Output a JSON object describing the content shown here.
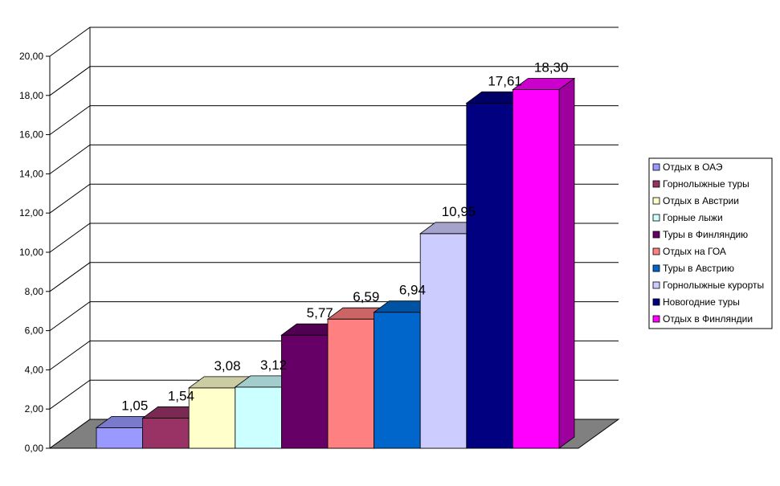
{
  "chart_data": {
    "type": "bar",
    "title": "",
    "xlabel": "",
    "ylabel": "",
    "ylim": [
      0,
      20
    ],
    "y_ticks": [
      "0,00",
      "2,00",
      "4,00",
      "6,00",
      "8,00",
      "10,00",
      "12,00",
      "14,00",
      "16,00",
      "18,00",
      "20,00"
    ],
    "grid": true,
    "three_d": true,
    "legend_position": "right",
    "categories": [
      "Отдых в ОАЭ",
      "Горнолыжные туры",
      "Отдых в Австрии",
      "Горные лыжи",
      "Туры в Финляндию",
      "Отдых на ГОА",
      "Туры в Австрию",
      "Горнолыжные курорты",
      "Новогодние туры",
      "Отдых в Финляндии"
    ],
    "values": [
      1.05,
      1.54,
      3.08,
      3.12,
      5.77,
      6.59,
      6.94,
      10.95,
      17.61,
      18.3
    ],
    "value_labels": [
      "1,05",
      "1,54",
      "3,08",
      "3,12",
      "5,77",
      "6,59",
      "6,94",
      "10,95",
      "17,61",
      "18,30"
    ],
    "colors": [
      "#9999FF",
      "#993366",
      "#FFFFCC",
      "#CCFFFF",
      "#660066",
      "#FF8080",
      "#0066CC",
      "#CCCCFF",
      "#000080",
      "#FF00FF"
    ]
  }
}
